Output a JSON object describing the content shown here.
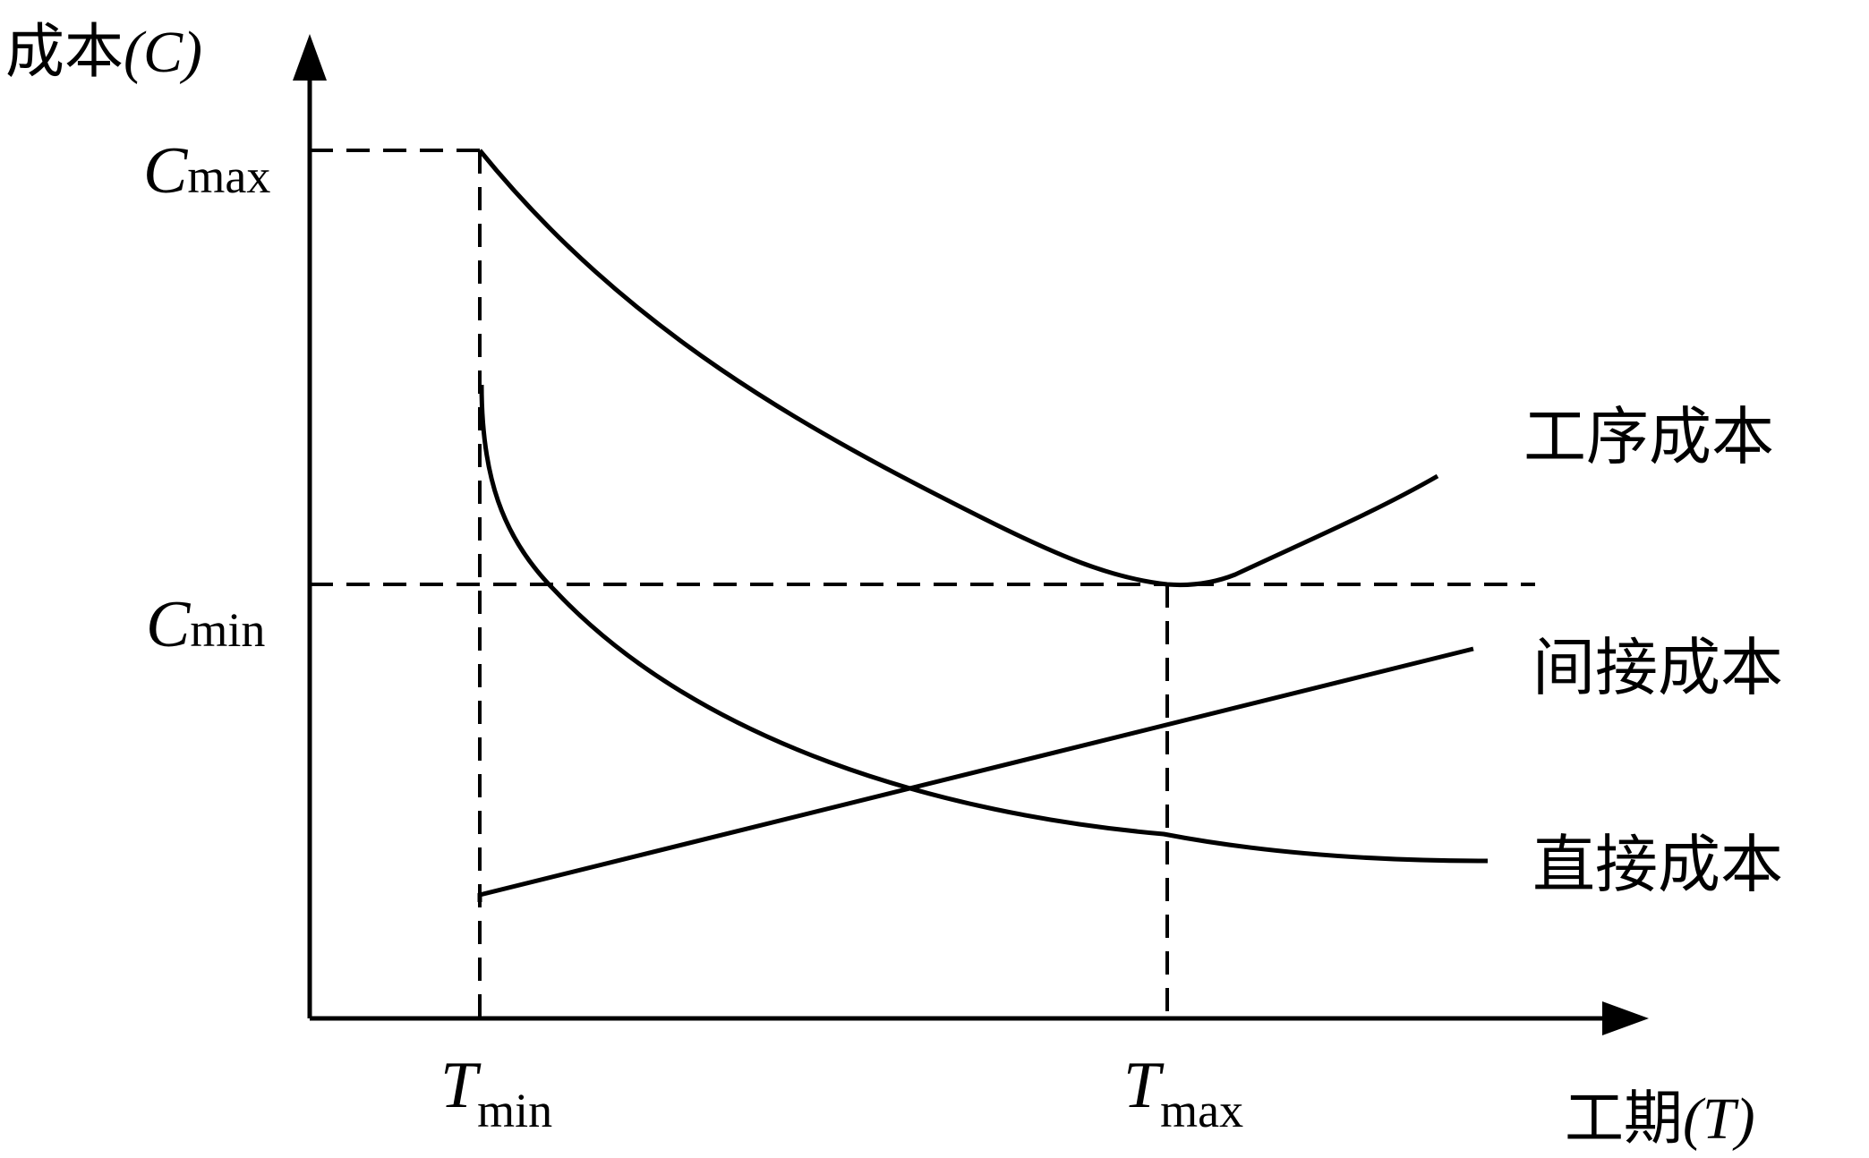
{
  "axes": {
    "y_label": "成本",
    "y_label_paren": "(C)",
    "x_label": "工期",
    "x_label_paren": "(T)"
  },
  "ticks": {
    "c_max": {
      "main": "C",
      "sub": "max"
    },
    "c_min": {
      "main": "C",
      "sub": "min"
    },
    "t_min": {
      "main": "T",
      "sub": "min"
    },
    "t_max": {
      "main": "T",
      "sub": "max"
    }
  },
  "curves": {
    "process_cost": "工序成本",
    "indirect_cost": "间接成本",
    "direct_cost": "直接成本"
  },
  "style": {
    "ink": "#000000",
    "background": "#ffffff"
  }
}
